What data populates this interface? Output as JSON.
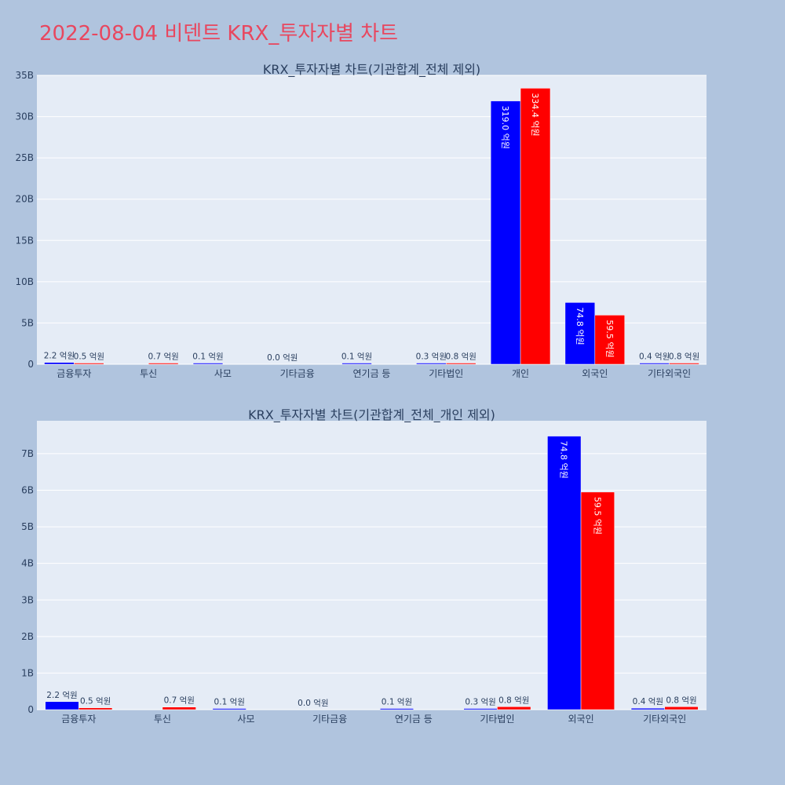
{
  "page": {
    "title": "2022-08-04 비덴트 KRX_투자자별 차트",
    "background": "#b0c4de",
    "title_color": "#e8475f"
  },
  "colors": {
    "plot_bg": "#e5ecf6",
    "grid": "#ffffff",
    "series_a": "#0000ff",
    "series_b": "#ff0000",
    "text": "#2a3f5f"
  },
  "chart_data": [
    {
      "type": "bar",
      "title": "KRX_투자자별 차트(기관합계_전체 제외)",
      "categories": [
        "금융투자",
        "투신",
        "사모",
        "기타금융",
        "연기금 등",
        "기타법인",
        "개인",
        "외국인",
        "기타외국인"
      ],
      "series": [
        {
          "color": "#0000ff",
          "values": [
            220000000,
            null,
            10000000,
            0,
            10000000,
            30000000,
            31900000000,
            7480000000,
            40000000
          ],
          "labels": [
            "2.2 억원",
            "",
            "0.1 억원",
            "0.0 억원",
            "0.1 억원",
            "0.3 억원",
            "319.0 억원",
            "74.8 억원",
            "0.4 억원"
          ]
        },
        {
          "color": "#ff0000",
          "values": [
            50000000,
            70000000,
            null,
            null,
            null,
            80000000,
            33440000000,
            5950000000,
            80000000
          ],
          "labels": [
            "0.5 억원",
            "0.7 억원",
            "",
            "",
            "",
            "0.8 억원",
            "334.4 억원",
            "59.5 억원",
            "0.8 억원"
          ]
        }
      ],
      "ylim": [
        0,
        35000000000
      ],
      "yticks": [
        0,
        5000000000,
        10000000000,
        15000000000,
        20000000000,
        25000000000,
        30000000000,
        35000000000
      ],
      "ytick_labels": [
        "0",
        "5B",
        "10B",
        "15B",
        "20B",
        "25B",
        "30B",
        "35B"
      ],
      "grid": true,
      "xlabel": "",
      "ylabel": ""
    },
    {
      "type": "bar",
      "title": "KRX_투자자별 차트(기관합계_전체_개인 제외)",
      "categories": [
        "금융투자",
        "투신",
        "사모",
        "기타금융",
        "연기금 등",
        "기타법인",
        "외국인",
        "기타외국인"
      ],
      "series": [
        {
          "color": "#0000ff",
          "values": [
            220000000,
            null,
            10000000,
            0,
            10000000,
            30000000,
            7480000000,
            40000000
          ],
          "labels": [
            "2.2 억원",
            "",
            "0.1 억원",
            "0.0 억원",
            "0.1 억원",
            "0.3 억원",
            "74.8 억원",
            "0.4 억원"
          ]
        },
        {
          "color": "#ff0000",
          "values": [
            50000000,
            70000000,
            null,
            null,
            null,
            80000000,
            5950000000,
            80000000
          ],
          "labels": [
            "0.5 억원",
            "0.7 억원",
            "",
            "",
            "",
            "0.8 억원",
            "59.5 억원",
            "0.8 억원"
          ]
        }
      ],
      "ylim": [
        0,
        7900000000
      ],
      "yticks": [
        0,
        1000000000,
        2000000000,
        3000000000,
        4000000000,
        5000000000,
        6000000000,
        7000000000
      ],
      "ytick_labels": [
        "0",
        "1B",
        "2B",
        "3B",
        "4B",
        "5B",
        "6B",
        "7B"
      ],
      "grid": true,
      "xlabel": "",
      "ylabel": ""
    }
  ]
}
